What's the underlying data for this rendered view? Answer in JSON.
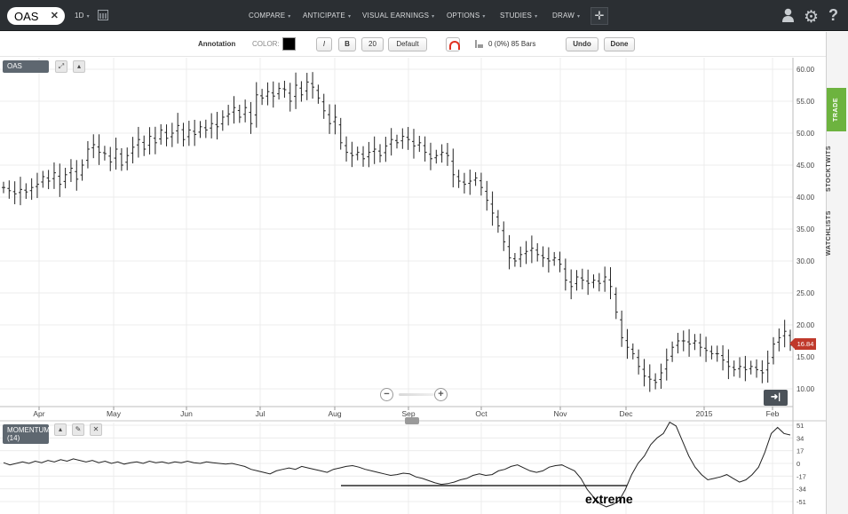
{
  "topbar": {
    "symbol": "OAS",
    "interval": "1D",
    "menu": [
      "COMPARE",
      "ANTICIPATE",
      "VISUAL EARNINGS",
      "OPTIONS",
      "STUDIES",
      "DRAW"
    ]
  },
  "annotation_bar": {
    "title": "Annotation",
    "color_label": "COLOR:",
    "italic": "I",
    "bold": "B",
    "size": "20",
    "default": "Default",
    "bars_info": "0 (0%) 85 Bars",
    "undo": "Undo",
    "done": "Done"
  },
  "side_tabs": [
    "TRADE",
    "STOCKTWITS",
    "WATCHLISTS"
  ],
  "main_panel": {
    "label": "OAS",
    "last_price": "16.84",
    "y_ticks": [
      "60.00",
      "55.00",
      "50.00",
      "45.00",
      "40.00",
      "35.00",
      "30.00",
      "25.00",
      "20.00",
      "15.00",
      "10.00"
    ],
    "x_ticks": [
      "Apr",
      "May",
      "Jun",
      "Jul",
      "Aug",
      "Sep",
      "Oct",
      "Nov",
      "Dec",
      "2015",
      "Feb"
    ]
  },
  "momentum_panel": {
    "label_line1": "MOMENTUM",
    "label_line2": "(14)",
    "y_ticks": [
      "51",
      "34",
      "17",
      "0",
      "-17",
      "-34",
      "-51"
    ]
  },
  "annotation_text": "extreme",
  "chart_data": [
    {
      "type": "bar",
      "subtype": "ohlc",
      "series": [
        {
          "name": "OAS",
          "values": [
            41.5,
            41.0,
            40.5,
            41.2,
            40.8,
            41.5,
            42.0,
            43.2,
            42.5,
            43.8,
            42.0,
            43.5,
            44.5,
            42.8,
            45.0,
            47.5,
            48.2,
            47.0,
            46.8,
            45.5,
            47.5,
            45.0,
            46.5,
            47.8,
            49.0,
            47.5,
            49.5,
            48.5,
            50.5,
            49.2,
            50.0,
            51.2,
            49.0,
            50.5,
            49.8,
            51.0,
            50.5,
            51.5,
            51.0,
            52.5,
            53.0,
            54.0,
            52.5,
            54.0,
            51.5,
            56.0,
            55.5,
            56.5,
            55.8,
            57.0,
            56.8,
            55.0,
            57.5,
            56.0,
            58.0,
            57.2,
            55.5,
            53.5,
            51.5,
            52.5,
            48.5,
            47.0,
            46.5,
            47.0,
            46.0,
            47.0,
            47.5,
            46.5,
            48.0,
            49.0,
            48.5,
            49.5,
            49.0,
            48.0,
            48.5,
            47.0,
            46.0,
            46.5,
            47.0,
            46.5,
            43.5,
            42.5,
            42.0,
            42.5,
            43.0,
            41.5,
            39.5,
            37.5,
            35.5,
            33.0,
            30.5,
            30.0,
            31.0,
            31.5,
            32.0,
            31.0,
            30.5,
            30.0,
            30.5,
            29.5,
            27.0,
            26.0,
            27.5,
            27.0,
            26.5,
            27.0,
            26.5,
            27.5,
            26.0,
            22.0,
            18.0,
            16.5,
            15.5,
            13.5,
            12.0,
            11.5,
            11.0,
            12.5,
            14.5,
            16.5,
            17.5,
            17.5,
            17.0,
            17.5,
            16.5,
            16.0,
            15.5,
            15.5,
            14.5,
            13.5,
            13.0,
            13.5,
            13.0,
            13.5,
            13.0,
            12.5,
            14.0,
            17.0,
            18.0,
            19.0,
            16.84
          ]
        }
      ],
      "x_ticks": [
        "Apr",
        "May",
        "Jun",
        "Jul",
        "Aug",
        "Sep",
        "Oct",
        "Nov",
        "Dec",
        "2015",
        "Feb"
      ],
      "ylim": [
        8,
        61
      ],
      "y_ticks": [
        60,
        55,
        50,
        45,
        40,
        35,
        30,
        25,
        20,
        15,
        10
      ],
      "grid": true
    },
    {
      "type": "line",
      "series": [
        {
          "name": "MOMENTUM",
          "values": [
            1,
            -2,
            0,
            2,
            0,
            3,
            1,
            4,
            2,
            5,
            3,
            6,
            4,
            2,
            4,
            1,
            3,
            0,
            2,
            -1,
            1,
            2,
            0,
            3,
            1,
            2,
            0,
            2,
            1,
            3,
            1,
            0,
            2,
            1,
            0,
            -1,
            0,
            -2,
            -4,
            -8,
            -10,
            -12,
            -14,
            -10,
            -8,
            -6,
            -8,
            -4,
            -6,
            -8,
            -10,
            -12,
            -8,
            -6,
            -4,
            -3,
            -5,
            -8,
            -10,
            -12,
            -14,
            -16,
            -15,
            -13,
            -14,
            -18,
            -20,
            -23,
            -26,
            -28,
            -27,
            -25,
            -22,
            -20,
            -16,
            -14,
            -16,
            -15,
            -10,
            -8,
            -4,
            -2,
            -6,
            -10,
            -12,
            -10,
            -5,
            -3,
            -2,
            -6,
            -10,
            -20,
            -35,
            -45,
            -54,
            -58,
            -55,
            -50,
            -35,
            -15,
            0,
            10,
            25,
            34,
            40,
            55,
            50,
            30,
            10,
            -5,
            -15,
            -22,
            -20,
            -18,
            -15,
            -20,
            -25,
            -22,
            -15,
            -5,
            15,
            40,
            48,
            40,
            38
          ]
        }
      ],
      "ylim": [
        -58,
        58
      ],
      "y_ticks": [
        51,
        34,
        17,
        0,
        -17,
        -34,
        -51
      ],
      "annotation": "extreme",
      "reference_level": -34,
      "grid": true
    }
  ]
}
